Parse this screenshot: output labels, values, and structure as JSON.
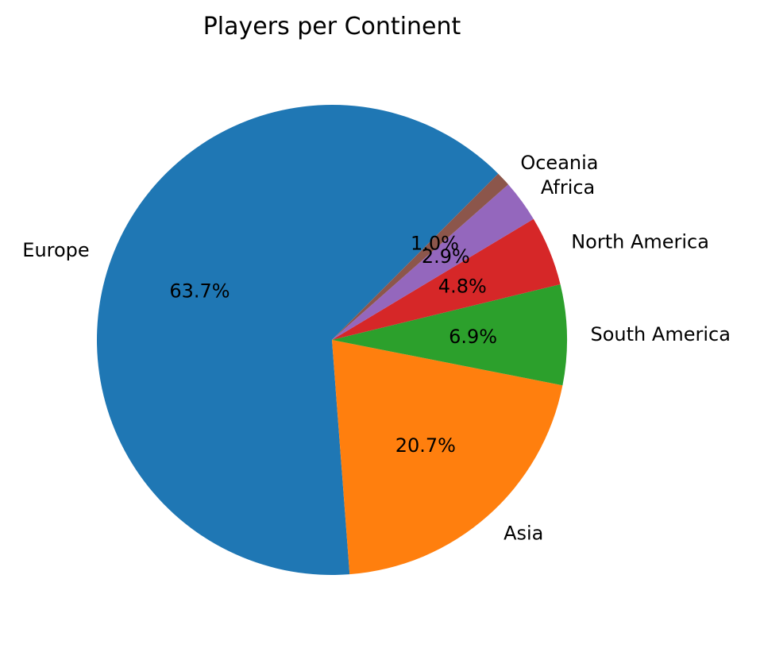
{
  "chart_data": {
    "type": "pie",
    "title": "Players per Continent",
    "start_angle_deg": 45,
    "direction": "counterclockwise",
    "slices": [
      {
        "label": "Europe",
        "value": 63.7,
        "pct_label": "63.7%",
        "color": "#1f77b4"
      },
      {
        "label": "Asia",
        "value": 20.7,
        "pct_label": "20.7%",
        "color": "#ff7f0e"
      },
      {
        "label": "South America",
        "value": 6.9,
        "pct_label": "6.9%",
        "color": "#2ca02c"
      },
      {
        "label": "North America",
        "value": 4.8,
        "pct_label": "4.8%",
        "color": "#d62728"
      },
      {
        "label": "Africa",
        "value": 2.9,
        "pct_label": "2.9%",
        "color": "#9467bd"
      },
      {
        "label": "Oceania",
        "value": 1.0,
        "pct_label": "1.0%",
        "color": "#8c564b"
      }
    ]
  }
}
